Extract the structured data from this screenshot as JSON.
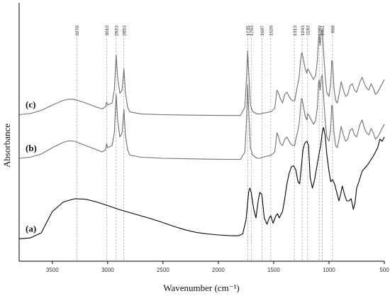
{
  "chart_data": {
    "type": "line",
    "xlabel": "Wavenumber (cm⁻¹)",
    "ylabel": "Absorbance",
    "xlim": [
      3800,
      500
    ],
    "x_reversed": true,
    "x_ticks": [
      3500,
      3000,
      2500,
      2000,
      1500,
      1000,
      500
    ],
    "y_ticks_shown": false,
    "grid": false,
    "peak_markers": [
      3278,
      3010,
      2923,
      2853,
      1735,
      1703,
      1526,
      1607,
      1313,
      1243,
      1193,
      1089,
      1061,
      968
    ],
    "series": [
      {
        "name": "(a)",
        "color": "#000000",
        "points": [
          [
            3800,
            0.062
          ],
          [
            3700,
            0.066
          ],
          [
            3600,
            0.09
          ],
          [
            3500,
            0.19
          ],
          [
            3400,
            0.235
          ],
          [
            3300,
            0.25
          ],
          [
            3200,
            0.248
          ],
          [
            3100,
            0.235
          ],
          [
            3000,
            0.218
          ],
          [
            2900,
            0.2
          ],
          [
            2800,
            0.185
          ],
          [
            2700,
            0.17
          ],
          [
            2600,
            0.155
          ],
          [
            2500,
            0.138
          ],
          [
            2400,
            0.12
          ],
          [
            2300,
            0.104
          ],
          [
            2200,
            0.092
          ],
          [
            2100,
            0.085
          ],
          [
            2000,
            0.08
          ],
          [
            1900,
            0.077
          ],
          [
            1820,
            0.076
          ],
          [
            1780,
            0.085
          ],
          [
            1750,
            0.15
          ],
          [
            1725,
            0.285
          ],
          [
            1715,
            0.3
          ],
          [
            1703,
            0.28
          ],
          [
            1680,
            0.2
          ],
          [
            1660,
            0.16
          ],
          [
            1640,
            0.24
          ],
          [
            1625,
            0.28
          ],
          [
            1607,
            0.27
          ],
          [
            1585,
            0.16
          ],
          [
            1560,
            0.13
          ],
          [
            1540,
            0.16
          ],
          [
            1526,
            0.17
          ],
          [
            1505,
            0.135
          ],
          [
            1480,
            0.17
          ],
          [
            1465,
            0.18
          ],
          [
            1450,
            0.16
          ],
          [
            1420,
            0.19
          ],
          [
            1400,
            0.25
          ],
          [
            1380,
            0.32
          ],
          [
            1360,
            0.37
          ],
          [
            1340,
            0.4
          ],
          [
            1320,
            0.405
          ],
          [
            1300,
            0.385
          ],
          [
            1280,
            0.33
          ],
          [
            1265,
            0.32
          ],
          [
            1250,
            0.4
          ],
          [
            1235,
            0.48
          ],
          [
            1220,
            0.51
          ],
          [
            1200,
            0.52
          ],
          [
            1185,
            0.5
          ],
          [
            1170,
            0.35
          ],
          [
            1150,
            0.3
          ],
          [
            1130,
            0.34
          ],
          [
            1110,
            0.4
          ],
          [
            1090,
            0.46
          ],
          [
            1075,
            0.5
          ],
          [
            1061,
            0.56
          ],
          [
            1050,
            0.585
          ],
          [
            1035,
            0.55
          ],
          [
            1020,
            0.46
          ],
          [
            1000,
            0.38
          ],
          [
            985,
            0.33
          ],
          [
            968,
            0.34
          ],
          [
            950,
            0.32
          ],
          [
            930,
            0.28
          ],
          [
            910,
            0.24
          ],
          [
            895,
            0.27
          ],
          [
            880,
            0.31
          ],
          [
            860,
            0.27
          ],
          [
            840,
            0.24
          ],
          [
            820,
            0.24
          ],
          [
            800,
            0.25
          ],
          [
            780,
            0.2
          ],
          [
            765,
            0.23
          ],
          [
            750,
            0.3
          ],
          [
            730,
            0.33
          ],
          [
            700,
            0.38
          ],
          [
            650,
            0.41
          ],
          [
            600,
            0.45
          ],
          [
            560,
            0.49
          ],
          [
            540,
            0.53
          ],
          [
            520,
            0.52
          ],
          [
            500,
            0.54
          ]
        ]
      },
      {
        "name": "(b)",
        "color": "#6f6f6f",
        "points": [
          [
            3800,
            0.44
          ],
          [
            3700,
            0.445
          ],
          [
            3600,
            0.46
          ],
          [
            3500,
            0.49
          ],
          [
            3400,
            0.515
          ],
          [
            3350,
            0.522
          ],
          [
            3300,
            0.52
          ],
          [
            3200,
            0.5
          ],
          [
            3100,
            0.48
          ],
          [
            3050,
            0.47
          ],
          [
            3020,
            0.48
          ],
          [
            3010,
            0.51
          ],
          [
            3000,
            0.49
          ],
          [
            2960,
            0.5
          ],
          [
            2940,
            0.56
          ],
          [
            2923,
            0.74
          ],
          [
            2910,
            0.62
          ],
          [
            2890,
            0.54
          ],
          [
            2870,
            0.56
          ],
          [
            2853,
            0.67
          ],
          [
            2840,
            0.55
          ],
          [
            2820,
            0.48
          ],
          [
            2800,
            0.455
          ],
          [
            2700,
            0.445
          ],
          [
            2500,
            0.44
          ],
          [
            2300,
            0.438
          ],
          [
            2100,
            0.436
          ],
          [
            1900,
            0.435
          ],
          [
            1800,
            0.435
          ],
          [
            1760,
            0.47
          ],
          [
            1745,
            0.62
          ],
          [
            1735,
            0.785
          ],
          [
            1725,
            0.66
          ],
          [
            1710,
            0.49
          ],
          [
            1690,
            0.455
          ],
          [
            1650,
            0.44
          ],
          [
            1620,
            0.44
          ],
          [
            1600,
            0.445
          ],
          [
            1560,
            0.45
          ],
          [
            1520,
            0.455
          ],
          [
            1490,
            0.47
          ],
          [
            1470,
            0.56
          ],
          [
            1455,
            0.54
          ],
          [
            1440,
            0.51
          ],
          [
            1420,
            0.5
          ],
          [
            1400,
            0.53
          ],
          [
            1380,
            0.54
          ],
          [
            1370,
            0.53
          ],
          [
            1350,
            0.51
          ],
          [
            1330,
            0.5
          ],
          [
            1310,
            0.5
          ],
          [
            1300,
            0.53
          ],
          [
            1285,
            0.56
          ],
          [
            1270,
            0.6
          ],
          [
            1260,
            0.66
          ],
          [
            1250,
            0.72
          ],
          [
            1243,
            0.72
          ],
          [
            1230,
            0.68
          ],
          [
            1215,
            0.64
          ],
          [
            1200,
            0.62
          ],
          [
            1193,
            0.65
          ],
          [
            1180,
            0.64
          ],
          [
            1160,
            0.62
          ],
          [
            1140,
            0.6
          ],
          [
            1120,
            0.62
          ],
          [
            1105,
            0.68
          ],
          [
            1095,
            0.79
          ],
          [
            1089,
            0.81
          ],
          [
            1080,
            0.76
          ],
          [
            1070,
            0.82
          ],
          [
            1061,
            0.83
          ],
          [
            1050,
            0.74
          ],
          [
            1035,
            0.62
          ],
          [
            1020,
            0.54
          ],
          [
            1000,
            0.52
          ],
          [
            985,
            0.58
          ],
          [
            975,
            0.69
          ],
          [
            968,
            0.68
          ],
          [
            955,
            0.56
          ],
          [
            940,
            0.5
          ],
          [
            925,
            0.49
          ],
          [
            905,
            0.54
          ],
          [
            890,
            0.59
          ],
          [
            870,
            0.55
          ],
          [
            850,
            0.52
          ],
          [
            830,
            0.53
          ],
          [
            810,
            0.57
          ],
          [
            790,
            0.58
          ],
          [
            770,
            0.55
          ],
          [
            750,
            0.54
          ],
          [
            720,
            0.6
          ],
          [
            700,
            0.62
          ],
          [
            680,
            0.58
          ],
          [
            660,
            0.56
          ],
          [
            640,
            0.55
          ],
          [
            620,
            0.58
          ],
          [
            600,
            0.56
          ],
          [
            580,
            0.53
          ],
          [
            560,
            0.54
          ],
          [
            540,
            0.56
          ],
          [
            520,
            0.58
          ],
          [
            500,
            0.6
          ]
        ]
      },
      {
        "name": "(c)",
        "color": "#6f6f6f",
        "points": [
          [
            3800,
            0.645
          ],
          [
            3700,
            0.65
          ],
          [
            3600,
            0.665
          ],
          [
            3500,
            0.69
          ],
          [
            3400,
            0.712
          ],
          [
            3350,
            0.718
          ],
          [
            3300,
            0.716
          ],
          [
            3200,
            0.7
          ],
          [
            3100,
            0.68
          ],
          [
            3050,
            0.672
          ],
          [
            3020,
            0.682
          ],
          [
            3010,
            0.705
          ],
          [
            3000,
            0.69
          ],
          [
            2960,
            0.7
          ],
          [
            2940,
            0.76
          ],
          [
            2923,
            0.925
          ],
          [
            2910,
            0.82
          ],
          [
            2890,
            0.745
          ],
          [
            2870,
            0.76
          ],
          [
            2853,
            0.86
          ],
          [
            2840,
            0.75
          ],
          [
            2820,
            0.68
          ],
          [
            2800,
            0.658
          ],
          [
            2700,
            0.648
          ],
          [
            2500,
            0.645
          ],
          [
            2300,
            0.643
          ],
          [
            2100,
            0.642
          ],
          [
            1900,
            0.641
          ],
          [
            1800,
            0.641
          ],
          [
            1760,
            0.68
          ],
          [
            1745,
            0.82
          ],
          [
            1735,
            0.945
          ],
          [
            1725,
            0.84
          ],
          [
            1710,
            0.69
          ],
          [
            1690,
            0.66
          ],
          [
            1650,
            0.648
          ],
          [
            1620,
            0.648
          ],
          [
            1600,
            0.652
          ],
          [
            1560,
            0.655
          ],
          [
            1520,
            0.66
          ],
          [
            1490,
            0.675
          ],
          [
            1470,
            0.76
          ],
          [
            1455,
            0.745
          ],
          [
            1440,
            0.72
          ],
          [
            1420,
            0.7
          ],
          [
            1400,
            0.74
          ],
          [
            1380,
            0.75
          ],
          [
            1370,
            0.74
          ],
          [
            1350,
            0.72
          ],
          [
            1330,
            0.71
          ],
          [
            1310,
            0.71
          ],
          [
            1300,
            0.74
          ],
          [
            1285,
            0.78
          ],
          [
            1270,
            0.82
          ],
          [
            1260,
            0.88
          ],
          [
            1250,
            0.93
          ],
          [
            1243,
            0.935
          ],
          [
            1230,
            0.9
          ],
          [
            1215,
            0.86
          ],
          [
            1200,
            0.84
          ],
          [
            1193,
            0.86
          ],
          [
            1180,
            0.85
          ],
          [
            1160,
            0.83
          ],
          [
            1140,
            0.81
          ],
          [
            1120,
            0.83
          ],
          [
            1105,
            0.9
          ],
          [
            1095,
            1.0
          ],
          [
            1089,
            1.02
          ],
          [
            1080,
            0.97
          ],
          [
            1070,
            1.035
          ],
          [
            1061,
            1.04
          ],
          [
            1050,
            0.95
          ],
          [
            1035,
            0.83
          ],
          [
            1020,
            0.75
          ],
          [
            1000,
            0.73
          ],
          [
            985,
            0.79
          ],
          [
            975,
            0.9
          ],
          [
            968,
            0.89
          ],
          [
            955,
            0.77
          ],
          [
            940,
            0.71
          ],
          [
            925,
            0.7
          ],
          [
            905,
            0.75
          ],
          [
            890,
            0.8
          ],
          [
            870,
            0.76
          ],
          [
            850,
            0.73
          ],
          [
            830,
            0.74
          ],
          [
            810,
            0.78
          ],
          [
            790,
            0.79
          ],
          [
            770,
            0.76
          ],
          [
            750,
            0.75
          ],
          [
            720,
            0.8
          ],
          [
            700,
            0.82
          ],
          [
            680,
            0.79
          ],
          [
            660,
            0.77
          ],
          [
            640,
            0.76
          ],
          [
            620,
            0.79
          ],
          [
            600,
            0.77
          ],
          [
            580,
            0.74
          ],
          [
            560,
            0.75
          ],
          [
            540,
            0.77
          ],
          [
            520,
            0.79
          ],
          [
            500,
            0.81
          ]
        ]
      }
    ]
  }
}
